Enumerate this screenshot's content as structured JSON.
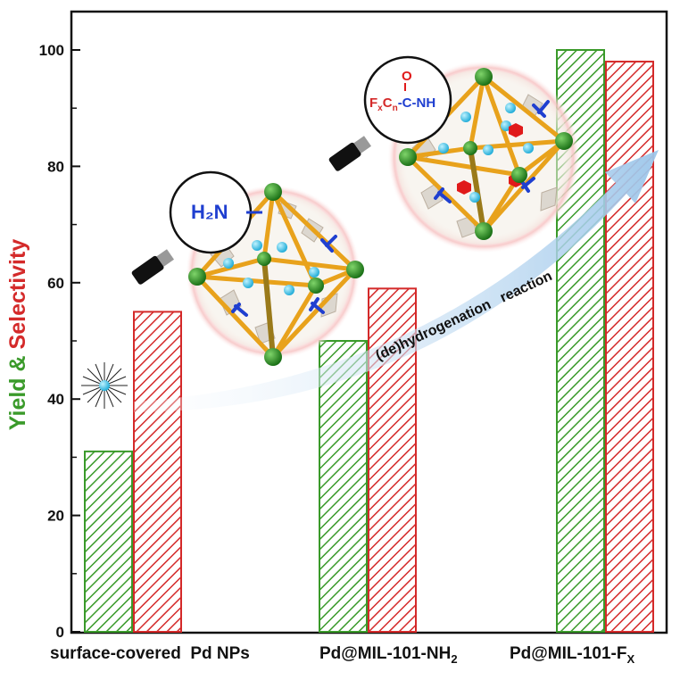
{
  "chart_data": {
    "type": "bar",
    "categories": [
      "surface-covered  Pd NPs",
      "Pd@MIL-101-NH2",
      "Pd@MIL-101-Fx"
    ],
    "category_labels": {
      "c0": "surface-covered  Pd NPs",
      "c1_main": "Pd@MIL-101-NH",
      "c1_sub": "2",
      "c2_main": "Pd@MIL-101-F",
      "c2_sub": "X"
    },
    "series": [
      {
        "key": "yield",
        "values": [
          31,
          50,
          100
        ],
        "color": "#3a9a2a"
      },
      {
        "key": "selectivity",
        "values": [
          55,
          59,
          98
        ],
        "color": "#d42a2a"
      }
    ],
    "ylabel": {
      "part1": "Yield",
      "part2": " & ",
      "part3": "Selectivity"
    },
    "ylim": [
      0,
      105
    ],
    "yticks": [
      0,
      20,
      40,
      60,
      80,
      100
    ],
    "tick_labels": [
      "0",
      "20",
      "40",
      "60",
      "80",
      "100"
    ],
    "arrow_label": "(de)hydrogenation   reaction",
    "annotations": {
      "amine_group": "H₂N",
      "amide_F": "F",
      "amide_x": "x",
      "amide_C": "C",
      "amide_n": "n",
      "amide_rest": "-C-NH",
      "amide_O": "O"
    },
    "colors": {
      "yield": "#3a9a2a",
      "selectivity": "#d42a2a",
      "arrow": "#a9cdea",
      "frame": "#e8a21c"
    }
  }
}
